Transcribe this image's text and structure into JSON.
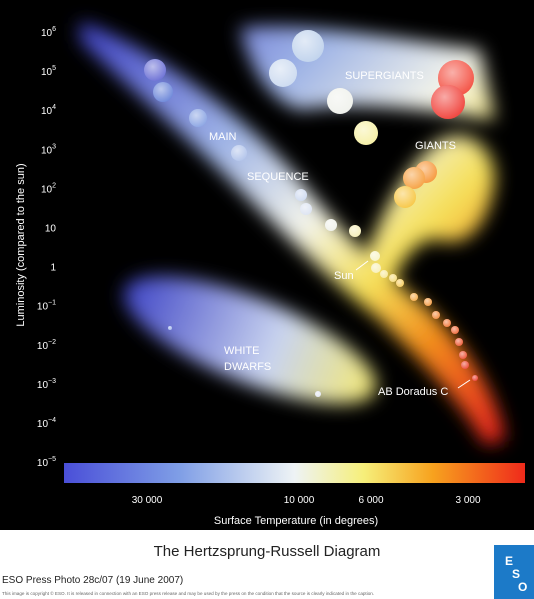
{
  "chart_title": "The Hertzsprung-Russell Diagram",
  "y_axis_title": "Luminosity (compared to the sun)",
  "x_axis_title": "Surface Temperature (in degrees)",
  "yticks": [
    {
      "text": "10",
      "sup": "6"
    },
    {
      "text": "10",
      "sup": "5"
    },
    {
      "text": "10",
      "sup": "4"
    },
    {
      "text": "10",
      "sup": "3"
    },
    {
      "text": "10",
      "sup": "2"
    },
    {
      "text": "10"
    },
    {
      "text": "1"
    },
    {
      "text": "10",
      "sup": "−1"
    },
    {
      "text": "10",
      "sup": "−2"
    },
    {
      "text": "10",
      "sup": "−3"
    },
    {
      "text": "10",
      "sup": "−4"
    },
    {
      "text": "10",
      "sup": "−5"
    }
  ],
  "xticks": [
    "30 000",
    "10 000",
    "6 000",
    "3 000"
  ],
  "regions": {
    "supergiants": "SUPERGIANTS",
    "giants": "GIANTS",
    "main": "MAIN",
    "sequence": "SEQUENCE",
    "white": "WHITE",
    "dwarfs": "DWARFS"
  },
  "annotations": {
    "sun": "Sun",
    "ab_doradus": "AB Doradus C"
  },
  "footer": {
    "credit": "ESO Press Photo 28c/07 (19 June 2007)",
    "copyright": "This image is copyright © ESO. It is released in connection with an ESO press release and may be used by the press on the condition that the source is clearly indicated in the caption.",
    "logo": [
      "E",
      "S",
      "O"
    ]
  }
}
